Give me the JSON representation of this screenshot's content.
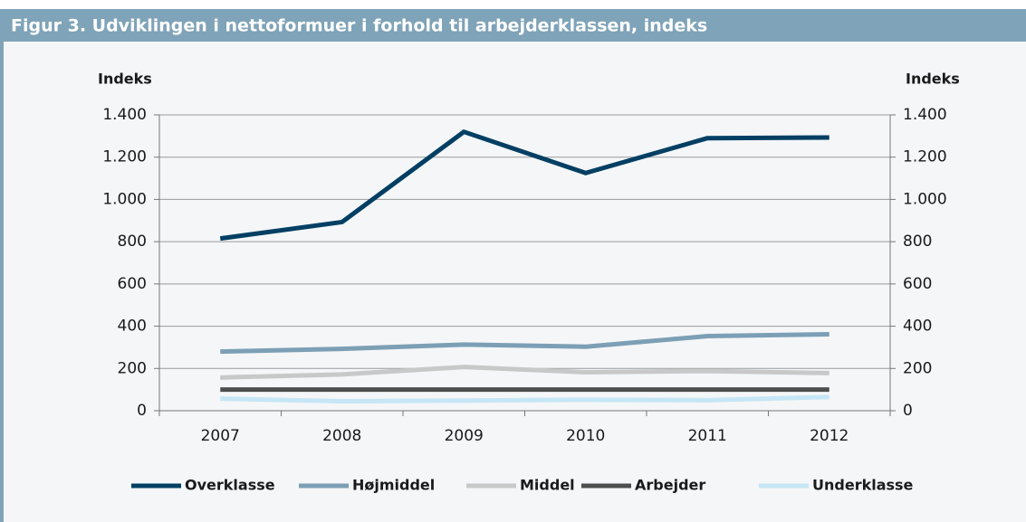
{
  "header": {
    "title": "Figur 3. Udviklingen i nettoformuer i forhold til arbejderklassen, indeks"
  },
  "chart_data": {
    "type": "line",
    "ylabel": "Indeks",
    "y2label": "Indeks",
    "categories": [
      "2007",
      "2008",
      "2009",
      "2010",
      "2011",
      "2012"
    ],
    "series": [
      {
        "name": "Overklasse",
        "color": "#003f63",
        "values": [
          815,
          893,
          1320,
          1125,
          1290,
          1293
        ]
      },
      {
        "name": "Højmiddel",
        "color": "#7c9fb5",
        "values": [
          280,
          293,
          313,
          303,
          353,
          362
        ]
      },
      {
        "name": "Middel",
        "color": "#c8c8c8",
        "values": [
          157,
          172,
          207,
          182,
          188,
          178
        ]
      },
      {
        "name": "Arbejder",
        "color": "#4d4d4d",
        "values": [
          100,
          100,
          100,
          100,
          100,
          100
        ]
      },
      {
        "name": "Underklasse",
        "color": "#c6e6f5",
        "values": [
          57,
          45,
          48,
          52,
          50,
          65
        ]
      }
    ],
    "ylim": [
      0,
      1400
    ],
    "yticks": [
      0,
      200,
      400,
      600,
      800,
      {
        "value": 1000,
        "label": "1.000"
      },
      {
        "value": 1200,
        "label": "1.200"
      },
      {
        "value": 1400,
        "label": "1.400"
      }
    ],
    "y2lim": [
      0,
      1400
    ],
    "y2ticks": [
      0,
      200,
      400,
      600,
      800,
      {
        "value": 1000,
        "label": "1.000"
      },
      {
        "value": 1200,
        "label": "1.200"
      },
      {
        "value": 1400,
        "label": "1.400"
      }
    ],
    "grid": true,
    "legend": "bottom"
  }
}
